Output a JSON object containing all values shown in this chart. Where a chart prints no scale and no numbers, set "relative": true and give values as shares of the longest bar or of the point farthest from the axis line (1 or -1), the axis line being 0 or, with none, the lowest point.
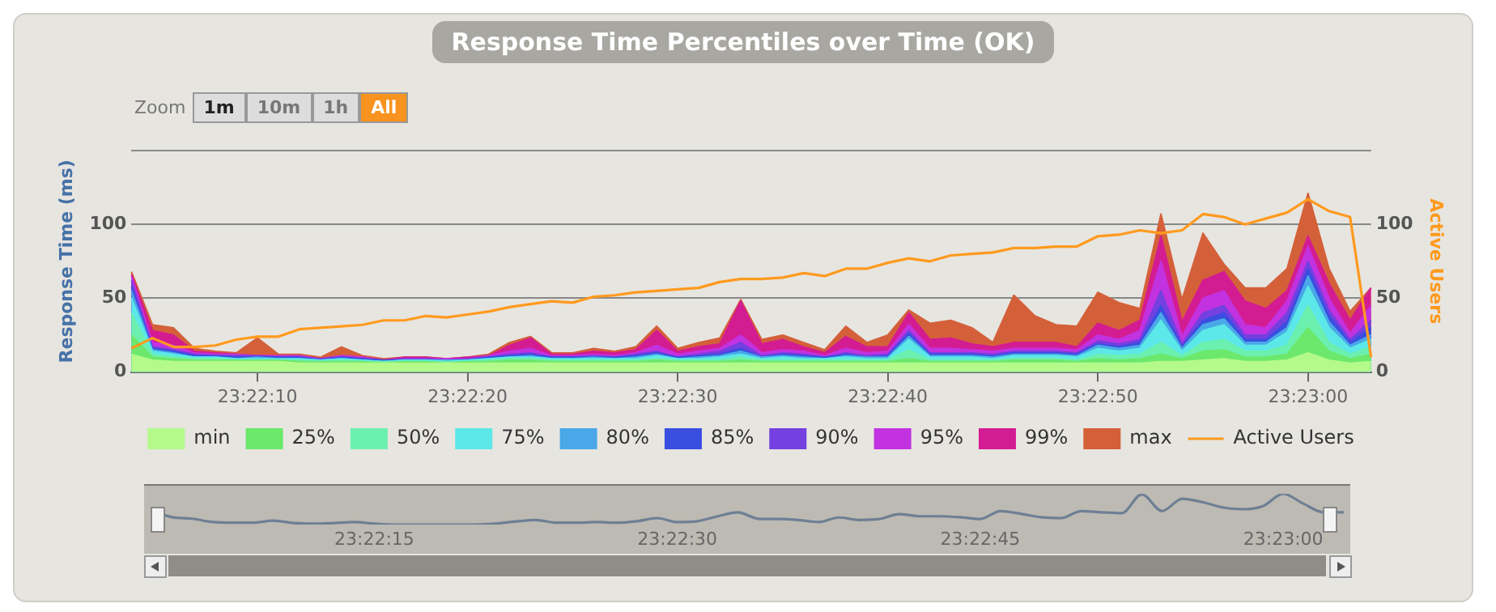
{
  "chart_data": [
    {
      "type": "area",
      "title": "Response Time Percentiles over Time (OK)",
      "ylabel": "Response Time (ms)",
      "y2label": "Active Users",
      "annotations": [
        "Zoom",
        "1m",
        "10m",
        "1h",
        "All"
      ],
      "categories": [
        null,
        null,
        null,
        null,
        null,
        null,
        "23:22:10",
        null,
        null,
        null,
        null,
        null,
        null,
        null,
        null,
        null,
        "23:22:20",
        null,
        null,
        null,
        null,
        null,
        null,
        null,
        null,
        null,
        "23:22:30",
        null,
        null,
        null,
        null,
        null,
        null,
        null,
        null,
        null,
        "23:22:40",
        null,
        null,
        null,
        null,
        null,
        null,
        null,
        null,
        null,
        "23:22:50",
        null,
        null,
        null,
        null,
        null,
        null,
        null,
        null,
        null,
        "23:23:00",
        null,
        null,
        null
      ],
      "ylim": [
        0,
        150
      ],
      "yticks": [
        0,
        50,
        100,
        {
          "value": 150,
          "label": null
        }
      ],
      "y2lim": [
        0,
        150
      ],
      "y2ticks": [
        0,
        50,
        100
      ],
      "grid": "y",
      "legend": "bottom",
      "series": [
        {
          "name": "min",
          "color": "#b3fa8a",
          "values": [
            12,
            8,
            7,
            7,
            7,
            7,
            7,
            7,
            6,
            6,
            6,
            6,
            6,
            6,
            6,
            6,
            6,
            6,
            6,
            6,
            6,
            6,
            6,
            6,
            6,
            6,
            6,
            6,
            6,
            6,
            6,
            6,
            6,
            6,
            6,
            6,
            6,
            6,
            6,
            6,
            6,
            6,
            6,
            6,
            6,
            6,
            6,
            6,
            6,
            7,
            7,
            8,
            9,
            7,
            7,
            8,
            13,
            8,
            6,
            7
          ]
        },
        {
          "name": "25%",
          "color": "#6ce86c",
          "values": [
            25,
            10,
            9,
            8,
            8,
            8,
            8,
            8,
            7,
            7,
            7,
            7,
            6,
            7,
            7,
            6,
            7,
            7,
            8,
            8,
            7,
            7,
            7,
            7,
            7,
            8,
            7,
            7,
            7,
            8,
            7,
            7,
            7,
            7,
            7,
            7,
            7,
            9,
            7,
            7,
            7,
            7,
            8,
            8,
            8,
            7,
            9,
            8,
            9,
            12,
            9,
            14,
            15,
            10,
            10,
            12,
            30,
            14,
            9,
            12
          ]
        },
        {
          "name": "50%",
          "color": "#6cf0b0",
          "values": [
            40,
            12,
            10,
            9,
            9,
            8,
            8,
            8,
            8,
            7,
            8,
            7,
            7,
            7,
            7,
            7,
            7,
            8,
            9,
            9,
            8,
            8,
            8,
            8,
            8,
            9,
            8,
            8,
            8,
            10,
            8,
            8,
            8,
            8,
            8,
            8,
            8,
            15,
            8,
            8,
            8,
            8,
            9,
            9,
            9,
            8,
            12,
            11,
            12,
            20,
            11,
            20,
            22,
            14,
            14,
            18,
            45,
            20,
            12,
            17
          ]
        },
        {
          "name": "75%",
          "color": "#5ce8e8",
          "values": [
            50,
            14,
            12,
            10,
            10,
            9,
            9,
            9,
            9,
            8,
            9,
            8,
            7,
            8,
            8,
            7,
            8,
            9,
            10,
            10,
            9,
            9,
            9,
            9,
            9,
            11,
            9,
            9,
            10,
            12,
            9,
            10,
            9,
            9,
            10,
            9,
            9,
            22,
            10,
            10,
            10,
            9,
            11,
            11,
            11,
            10,
            16,
            14,
            16,
            35,
            14,
            28,
            32,
            18,
            18,
            27,
            58,
            30,
            16,
            22
          ]
        },
        {
          "name": "80%",
          "color": "#4aa8e8",
          "values": [
            55,
            15,
            13,
            10,
            10,
            9,
            10,
            9,
            9,
            8,
            9,
            8,
            7,
            8,
            8,
            8,
            8,
            9,
            10,
            11,
            9,
            9,
            10,
            9,
            10,
            12,
            9,
            10,
            11,
            14,
            10,
            11,
            10,
            9,
            11,
            10,
            10,
            24,
            11,
            11,
            11,
            10,
            12,
            12,
            12,
            11,
            18,
            16,
            18,
            40,
            16,
            32,
            36,
            20,
            20,
            30,
            65,
            34,
            18,
            25
          ]
        },
        {
          "name": "85%",
          "color": "#3a4ee0",
          "values": [
            58,
            16,
            14,
            11,
            11,
            10,
            10,
            10,
            10,
            8,
            10,
            9,
            8,
            8,
            8,
            8,
            8,
            10,
            11,
            12,
            10,
            10,
            10,
            10,
            11,
            13,
            10,
            11,
            12,
            16,
            10,
            12,
            11,
            10,
            12,
            10,
            11,
            26,
            12,
            12,
            12,
            11,
            13,
            13,
            13,
            12,
            19,
            17,
            20,
            45,
            17,
            35,
            40,
            22,
            22,
            34,
            70,
            38,
            20,
            30
          ]
        },
        {
          "name": "90%",
          "color": "#7440e0",
          "values": [
            62,
            17,
            15,
            12,
            11,
            11,
            11,
            10,
            10,
            9,
            10,
            9,
            8,
            9,
            9,
            8,
            9,
            10,
            12,
            13,
            10,
            10,
            11,
            10,
            12,
            14,
            10,
            12,
            14,
            20,
            11,
            13,
            12,
            10,
            13,
            11,
            12,
            28,
            13,
            13,
            13,
            12,
            14,
            14,
            14,
            13,
            21,
            19,
            22,
            55,
            19,
            40,
            45,
            25,
            25,
            40,
            75,
            42,
            22,
            35
          ]
        },
        {
          "name": "95%",
          "color": "#c232e0",
          "values": [
            65,
            20,
            18,
            13,
            12,
            12,
            11,
            11,
            11,
            9,
            11,
            10,
            8,
            9,
            9,
            9,
            9,
            11,
            14,
            16,
            11,
            11,
            12,
            11,
            13,
            18,
            12,
            14,
            16,
            25,
            13,
            15,
            14,
            11,
            16,
            13,
            14,
            32,
            16,
            16,
            15,
            14,
            16,
            16,
            16,
            15,
            25,
            22,
            28,
            75,
            24,
            50,
            55,
            32,
            30,
            48,
            85,
            50,
            26,
            45
          ]
        },
        {
          "name": "99%",
          "color": "#d41c92",
          "values": [
            66,
            28,
            25,
            14,
            13,
            12,
            11,
            11,
            11,
            9,
            11,
            10,
            8,
            10,
            10,
            9,
            10,
            11,
            18,
            23,
            12,
            12,
            14,
            13,
            15,
            28,
            14,
            17,
            19,
            48,
            19,
            22,
            17,
            13,
            24,
            17,
            17,
            40,
            22,
            23,
            19,
            17,
            20,
            20,
            20,
            17,
            33,
            28,
            35,
            92,
            34,
            62,
            68,
            48,
            43,
            55,
            92,
            60,
            35,
            57
          ]
        },
        {
          "name": "max",
          "color": "#d4603a",
          "values": [
            68,
            32,
            30,
            16,
            14,
            13,
            23,
            12,
            12,
            10,
            17,
            11,
            9,
            10,
            10,
            9,
            10,
            12,
            20,
            24,
            13,
            13,
            16,
            14,
            17,
            31,
            16,
            20,
            23,
            49,
            22,
            25,
            20,
            15,
            31,
            20,
            25,
            42,
            33,
            35,
            30,
            20,
            52,
            38,
            32,
            31,
            54,
            47,
            43,
            107,
            49,
            94,
            73,
            57,
            57,
            70,
            121,
            70,
            41,
            57
          ]
        },
        {
          "name": "Active Users",
          "type": "line",
          "axis": "y2",
          "color": "#ff9a1e",
          "values": [
            16,
            23,
            17,
            17,
            18,
            22,
            24,
            24,
            29,
            30,
            31,
            32,
            35,
            35,
            38,
            37,
            39,
            41,
            44,
            46,
            48,
            47,
            51,
            52,
            54,
            55,
            56,
            57,
            61,
            63,
            63,
            64,
            67,
            65,
            70,
            70,
            74,
            77,
            75,
            79,
            80,
            81,
            84,
            84,
            85,
            85,
            92,
            93,
            96,
            94,
            96,
            107,
            105,
            100,
            104,
            108,
            117,
            109,
            105,
            10
          ]
        }
      ]
    },
    {
      "type": "line",
      "relative": true,
      "color": "#6e7f94",
      "grid": false,
      "categories": [
        null,
        null,
        null,
        null,
        null,
        null,
        null,
        null,
        null,
        null,
        null,
        "23:22:15",
        null,
        null,
        null,
        null,
        null,
        null,
        null,
        null,
        null,
        null,
        null,
        null,
        null,
        null,
        "23:22:30",
        null,
        null,
        null,
        null,
        null,
        null,
        null,
        null,
        null,
        null,
        null,
        null,
        null,
        null,
        "23:22:45",
        null,
        null,
        null,
        null,
        null,
        null,
        null,
        null,
        null,
        null,
        null,
        null,
        null,
        null,
        "23:23:00",
        null,
        null,
        null
      ],
      "values": [
        0.44,
        0.24,
        0.19,
        0.08,
        0.06,
        0.06,
        0.13,
        0.05,
        0.03,
        0.05,
        0.08,
        0.03,
        0,
        0,
        0,
        0,
        0,
        0.03,
        0.1,
        0.15,
        0.06,
        0.06,
        0.08,
        0.06,
        0.11,
        0.21,
        0.08,
        0.11,
        0.27,
        0.4,
        0.19,
        0.18,
        0.15,
        0.08,
        0.23,
        0.15,
        0.18,
        0.34,
        0.27,
        0.27,
        0.24,
        0.18,
        0.44,
        0.35,
        0.24,
        0.21,
        0.44,
        0.4,
        0.37,
        0.98,
        0.44,
        0.84,
        0.73,
        0.56,
        0.5,
        0.6,
        1,
        0.68,
        0.4,
        0.4
      ]
    }
  ]
}
